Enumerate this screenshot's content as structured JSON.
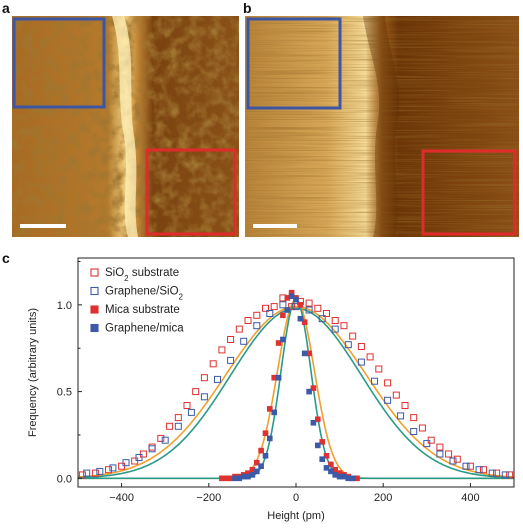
{
  "panels": {
    "a": {
      "label": "a"
    },
    "b": {
      "label": "b"
    },
    "c": {
      "label": "c"
    }
  },
  "colors": {
    "blue_box": "#3d55a3",
    "red_box": "#e02b2b",
    "afm_dark": "#5a2e08",
    "afm_mid": "#a86a22",
    "afm_light": "#e8c070",
    "afm_bright": "#fff3c0",
    "scale_bar": "#ffffff",
    "sio2": "#e03030",
    "graphene_sio2": "#3b5aa8",
    "fit_orange": "#f0a030",
    "fit_teal": "#2a9a8a"
  },
  "chart_data": {
    "type": "scatter",
    "xlabel": "Height (pm)",
    "ylabel": "Frequency (arbitrary units)",
    "xlim": [
      -500,
      500
    ],
    "ylim": [
      -0.05,
      1.27
    ],
    "xticks": [
      -400,
      -200,
      0,
      200,
      400
    ],
    "yticks": [
      0.0,
      0.5,
      1.0
    ],
    "ytick_labels": [
      "0.0",
      "0.5",
      "1.0"
    ],
    "legend_position": "top-left",
    "series": [
      {
        "name": "SiO2 substrate",
        "name_base": "SiO",
        "name_sub": "2",
        "name_rest": " substrate",
        "marker": "open-square",
        "color": "#e03030",
        "x": [
          -490,
          -460,
          -430,
          -400,
          -370,
          -350,
          -330,
          -310,
          -290,
          -270,
          -250,
          -230,
          -210,
          -190,
          -170,
          -150,
          -130,
          -110,
          -90,
          -70,
          -50,
          -30,
          -10,
          10,
          30,
          50,
          70,
          90,
          110,
          130,
          150,
          170,
          190,
          210,
          230,
          250,
          270,
          290,
          310,
          330,
          350,
          370,
          400,
          430,
          460,
          490
        ],
        "y": [
          0.02,
          0.03,
          0.05,
          0.07,
          0.1,
          0.14,
          0.18,
          0.23,
          0.3,
          0.35,
          0.42,
          0.5,
          0.58,
          0.66,
          0.74,
          0.8,
          0.86,
          0.91,
          0.94,
          0.98,
          0.99,
          1.04,
          0.99,
          1.02,
          1.01,
          0.98,
          0.95,
          0.91,
          0.88,
          0.82,
          0.76,
          0.7,
          0.63,
          0.55,
          0.48,
          0.42,
          0.35,
          0.29,
          0.22,
          0.18,
          0.14,
          0.11,
          0.07,
          0.05,
          0.03,
          0.02
        ]
      },
      {
        "name": "Graphene/SiO2",
        "name_base": "Graphene/SiO",
        "name_sub": "2",
        "name_rest": "",
        "marker": "open-square",
        "color": "#3b5aa8",
        "x": [
          -480,
          -450,
          -420,
          -390,
          -360,
          -330,
          -300,
          -270,
          -240,
          -210,
          -180,
          -150,
          -120,
          -90,
          -60,
          -30,
          0,
          30,
          60,
          90,
          120,
          150,
          180,
          210,
          240,
          270,
          300,
          330,
          360,
          390,
          420,
          450,
          480
        ],
        "y": [
          0.03,
          0.04,
          0.06,
          0.09,
          0.12,
          0.17,
          0.22,
          0.3,
          0.38,
          0.47,
          0.57,
          0.68,
          0.79,
          0.88,
          0.95,
          1.0,
          0.99,
          0.97,
          0.92,
          0.86,
          0.77,
          0.67,
          0.56,
          0.45,
          0.36,
          0.27,
          0.2,
          0.14,
          0.1,
          0.07,
          0.05,
          0.03,
          0.02
        ]
      },
      {
        "name": "Mica substrate",
        "name_base": "Mica substrate",
        "name_sub": "",
        "name_rest": "",
        "marker": "filled-square",
        "color": "#e03030",
        "x": [
          -170,
          -160,
          -150,
          -140,
          -130,
          -120,
          -110,
          -100,
          -90,
          -80,
          -70,
          -60,
          -50,
          -40,
          -30,
          -20,
          -10,
          0,
          10,
          20,
          30,
          40,
          50,
          60,
          70,
          80,
          90,
          100,
          110,
          120,
          130,
          140
        ],
        "y": [
          0.0,
          0.0,
          0.0,
          0.01,
          0.01,
          0.02,
          0.03,
          0.05,
          0.09,
          0.16,
          0.26,
          0.4,
          0.58,
          0.78,
          0.94,
          1.04,
          1.07,
          1.04,
          1.0,
          0.9,
          0.72,
          0.52,
          0.34,
          0.21,
          0.13,
          0.08,
          0.05,
          0.03,
          0.02,
          0.01,
          0.0,
          0.0
        ]
      },
      {
        "name": "Graphene/mica",
        "name_base": "Graphene/mica",
        "name_sub": "",
        "name_rest": "",
        "marker": "filled-square",
        "color": "#3b5aa8",
        "x": [
          -140,
          -130,
          -120,
          -110,
          -100,
          -90,
          -80,
          -70,
          -60,
          -50,
          -40,
          -30,
          -20,
          -10,
          0,
          10,
          20,
          30,
          40,
          50,
          60,
          70,
          80,
          90,
          100,
          110,
          120,
          130
        ],
        "y": [
          0.0,
          0.0,
          0.01,
          0.01,
          0.02,
          0.04,
          0.07,
          0.13,
          0.23,
          0.38,
          0.58,
          0.8,
          0.97,
          1.05,
          1.03,
          0.92,
          0.72,
          0.5,
          0.32,
          0.19,
          0.11,
          0.06,
          0.04,
          0.02,
          0.01,
          0.01,
          0.0,
          0.0
        ]
      }
    ],
    "fits": [
      {
        "color": "#f0a030",
        "center": 0,
        "sigma": 160,
        "amp": 0.99
      },
      {
        "color": "#2a9a8a",
        "center": 0,
        "sigma": 150,
        "amp": 0.98
      },
      {
        "color": "#f0a030",
        "center": 0,
        "sigma": 42,
        "amp": 1.03
      },
      {
        "color": "#2a9a8a",
        "center": 0,
        "sigma": 34,
        "amp": 1.03
      }
    ]
  }
}
